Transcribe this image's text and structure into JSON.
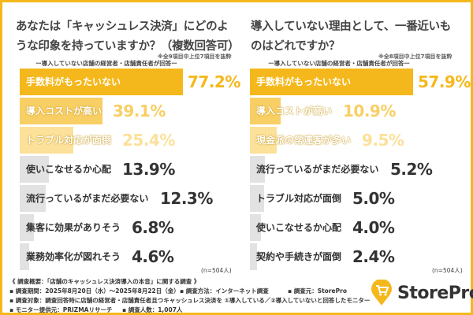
{
  "chart_data": [
    {
      "type": "bar",
      "orientation": "horizontal",
      "title": "あなたは「キャッシュレス決済」にどのような印象を持っていますか？（複数回答可）",
      "note": "※全9項目中上位7項目を抜粋",
      "subtitle": "ー導入していない店舗の経営者・店舗責任者が回答ー",
      "categories": [
        "手数料がもったいない",
        "導入コストが高い",
        "トラブル対応が面倒",
        "使いこなせるか心配",
        "流行っているがまだ必要ない",
        "集客に効果がありそう",
        "業務効率化が図れそう"
      ],
      "values": [
        77.2,
        39.1,
        25.4,
        13.9,
        12.3,
        6.8,
        4.6
      ],
      "value_labels": [
        "77.2%",
        "39.1%",
        "25.4%",
        "13.9%",
        "12.3%",
        "6.8%",
        "4.6%"
      ],
      "sample": "(n=504人)"
    },
    {
      "type": "bar",
      "orientation": "horizontal",
      "title": "導入していない理由として、一番近いものはどれですか？",
      "note": "※全8項目中上位7項目を抜粋",
      "subtitle": "ー導入していない店舗の経営者・店舗責任者が回答ー",
      "categories": [
        "手数料がもったいない",
        "導入コストが高い",
        "現金派の常連客が多い",
        "流行っているがまだ必要ない",
        "トラブル対応が面倒",
        "使いこなせるか心配",
        "契約や手続きが面倒"
      ],
      "values": [
        57.9,
        10.9,
        9.5,
        5.2,
        5.0,
        4.0,
        2.4
      ],
      "value_labels": [
        "57.9%",
        "10.9%",
        "9.5%",
        "5.2%",
        "5.0%",
        "4.0%",
        "2.4%"
      ],
      "sample": "(n=504人)"
    }
  ],
  "colors": {
    "rank1": "#f5b81c",
    "rank2": "#f8cf64",
    "rank3": "#fbe199",
    "other": "#e2e2e2",
    "frame": "#f5b81c"
  },
  "footer": {
    "heading": "《 調査概要：「店舗のキャッシュレス決済導入の本音」に関する調査 》",
    "period": "▪ 調査期間：2025年8月20日（水）〜2025年8月22日（金）",
    "method": "▪ 調査方法：インターネット調査",
    "source": "▪ 調査元：StorePro",
    "target": "▪ 調査対象：調査回答時に店舗の経営者・店舗責任者且つキャッシュレス決済を ①導入している／②導入していないと回答したモニター",
    "provider": "▪ モニター提供元：PRIZMAリサーチ",
    "count": "▪ 調査人数：1,007人"
  },
  "logo": {
    "text": "StorePro",
    "icon": "shopping-cart-pin-icon"
  }
}
